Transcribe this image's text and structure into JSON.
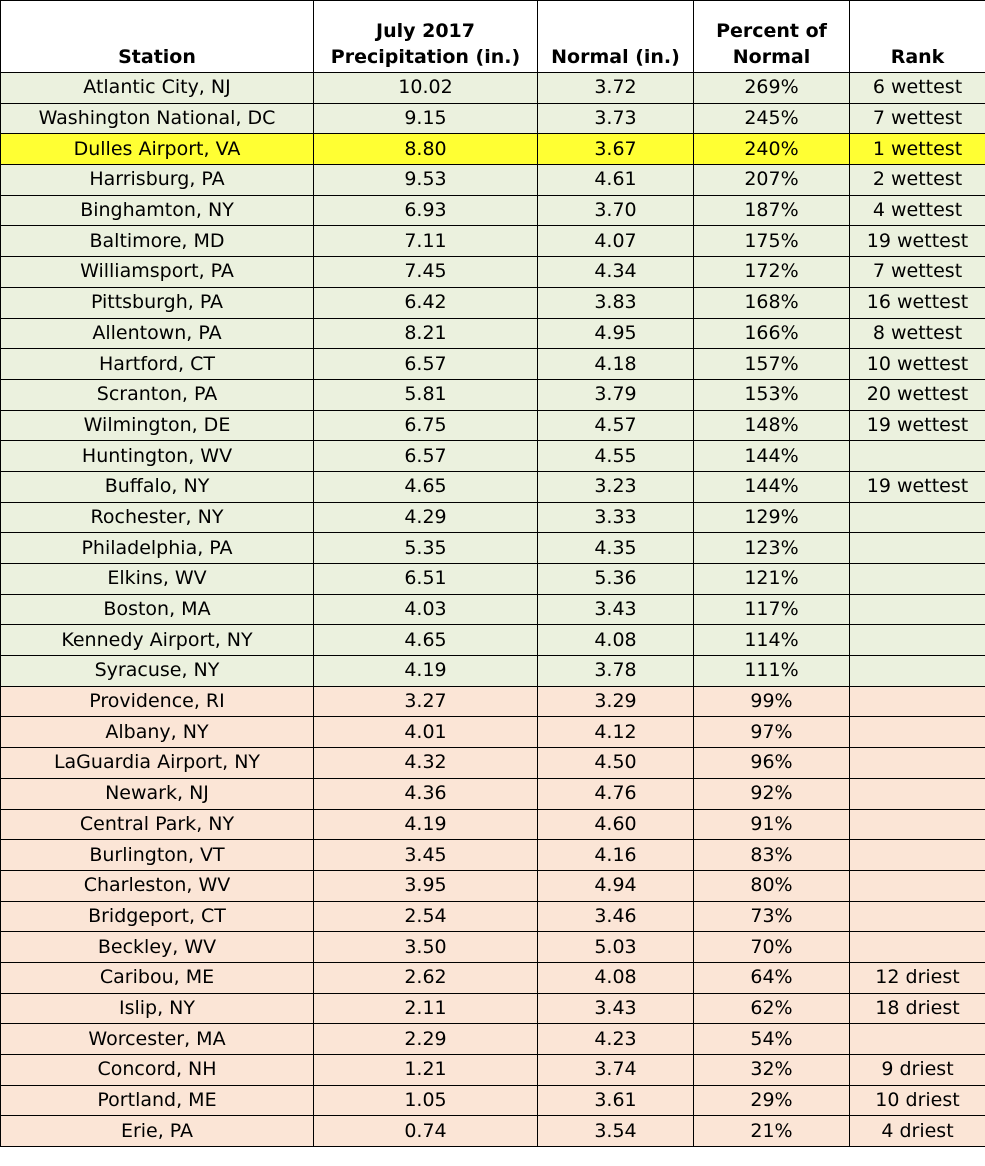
{
  "table": {
    "header": [
      "Station",
      "July 2017\nPrecipitation (in.)",
      "Normal (in.)",
      "Percent of\nNormal",
      "Rank"
    ],
    "rows": [
      {
        "cells": [
          "Atlantic City, NJ",
          "10.02",
          "3.72",
          "269%",
          "6 wettest"
        ],
        "color": "#ebf1de"
      },
      {
        "cells": [
          "Washington National, DC",
          "9.15",
          "3.73",
          "245%",
          "7 wettest"
        ],
        "color": "#ebf1de"
      },
      {
        "cells": [
          "Dulles Airport, VA",
          "8.80",
          "3.67",
          "240%",
          "1 wettest"
        ],
        "color": "#ffff33"
      },
      {
        "cells": [
          "Harrisburg, PA",
          "9.53",
          "4.61",
          "207%",
          "2 wettest"
        ],
        "color": "#ebf1de"
      },
      {
        "cells": [
          "Binghamton, NY",
          "6.93",
          "3.70",
          "187%",
          "4 wettest"
        ],
        "color": "#ebf1de"
      },
      {
        "cells": [
          "Baltimore, MD",
          "7.11",
          "4.07",
          "175%",
          "19 wettest"
        ],
        "color": "#ebf1de"
      },
      {
        "cells": [
          "Williamsport, PA",
          "7.45",
          "4.34",
          "172%",
          "7 wettest"
        ],
        "color": "#ebf1de"
      },
      {
        "cells": [
          "Pittsburgh, PA",
          "6.42",
          "3.83",
          "168%",
          "16 wettest"
        ],
        "color": "#ebf1de"
      },
      {
        "cells": [
          "Allentown, PA",
          "8.21",
          "4.95",
          "166%",
          "8 wettest"
        ],
        "color": "#ebf1de"
      },
      {
        "cells": [
          "Hartford, CT",
          "6.57",
          "4.18",
          "157%",
          "10 wettest"
        ],
        "color": "#ebf1de"
      },
      {
        "cells": [
          "Scranton, PA",
          "5.81",
          "3.79",
          "153%",
          "20 wettest"
        ],
        "color": "#ebf1de"
      },
      {
        "cells": [
          "Wilmington, DE",
          "6.75",
          "4.57",
          "148%",
          "19 wettest"
        ],
        "color": "#ebf1de"
      },
      {
        "cells": [
          "Huntington, WV",
          "6.57",
          "4.55",
          "144%"
        ],
        "color": "#ebf1de"
      },
      {
        "cells": [
          "Buffalo, NY",
          "4.65",
          "3.23",
          "144%",
          "19 wettest"
        ],
        "color": "#ebf1de"
      },
      {
        "cells": [
          "Rochester, NY",
          "4.29",
          "3.33",
          "129%"
        ],
        "color": "#ebf1de"
      },
      {
        "cells": [
          "Philadelphia, PA",
          "5.35",
          "4.35",
          "123%"
        ],
        "color": "#ebf1de"
      },
      {
        "cells": [
          "Elkins, WV",
          "6.51",
          "5.36",
          "121%"
        ],
        "color": "#ebf1de"
      },
      {
        "cells": [
          "Boston, MA",
          "4.03",
          "3.43",
          "117%"
        ],
        "color": "#ebf1de"
      },
      {
        "cells": [
          "Kennedy Airport, NY",
          "4.65",
          "4.08",
          "114%"
        ],
        "color": "#ebf1de"
      },
      {
        "cells": [
          "Syracuse, NY",
          "4.19",
          "3.78",
          "111%"
        ],
        "color": "#ebf1de"
      },
      {
        "cells": [
          "Providence, RI",
          "3.27",
          "3.29",
          "99%"
        ],
        "color": "#fbe5d6"
      },
      {
        "cells": [
          "Albany, NY",
          "4.01",
          "4.12",
          "97%"
        ],
        "color": "#fbe5d6"
      },
      {
        "cells": [
          "LaGuardia Airport, NY",
          "4.32",
          "4.50",
          "96%"
        ],
        "color": "#fbe5d6"
      },
      {
        "cells": [
          "Newark, NJ",
          "4.36",
          "4.76",
          "92%"
        ],
        "color": "#fbe5d6"
      },
      {
        "cells": [
          "Central Park, NY",
          "4.19",
          "4.60",
          "91%"
        ],
        "color": "#fbe5d6"
      },
      {
        "cells": [
          "Burlington, VT",
          "3.45",
          "4.16",
          "83%"
        ],
        "color": "#fbe5d6"
      },
      {
        "cells": [
          "Charleston, WV",
          "3.95",
          "4.94",
          "80%"
        ],
        "color": "#fbe5d6"
      },
      {
        "cells": [
          "Bridgeport, CT",
          "2.54",
          "3.46",
          "73%"
        ],
        "color": "#fbe5d6"
      },
      {
        "cells": [
          "Beckley, WV",
          "3.50",
          "5.03",
          "70%"
        ],
        "color": "#fbe5d6"
      },
      {
        "cells": [
          "Caribou, ME",
          "2.62",
          "4.08",
          "64%",
          "12 driest"
        ],
        "color": "#fbe5d6"
      },
      {
        "cells": [
          "Islip, NY",
          "2.11",
          "3.43",
          "62%",
          "18 driest"
        ],
        "color": "#fbe5d6"
      },
      {
        "cells": [
          "Worcester, MA",
          "2.29",
          "4.23",
          "54%"
        ],
        "color": "#fbe5d6"
      },
      {
        "cells": [
          "Concord, NH",
          "1.21",
          "3.74",
          "32%",
          "9 driest"
        ],
        "color": "#fbe5d6"
      },
      {
        "cells": [
          "Portland, ME",
          "1.05",
          "3.61",
          "29%",
          "10 driest"
        ],
        "color": "#fbe5d6"
      },
      {
        "cells": [
          "Erie, PA",
          "0.74",
          "3.54",
          "21%",
          "4 driest"
        ],
        "color": "#fbe5d6"
      }
    ]
  }
}
